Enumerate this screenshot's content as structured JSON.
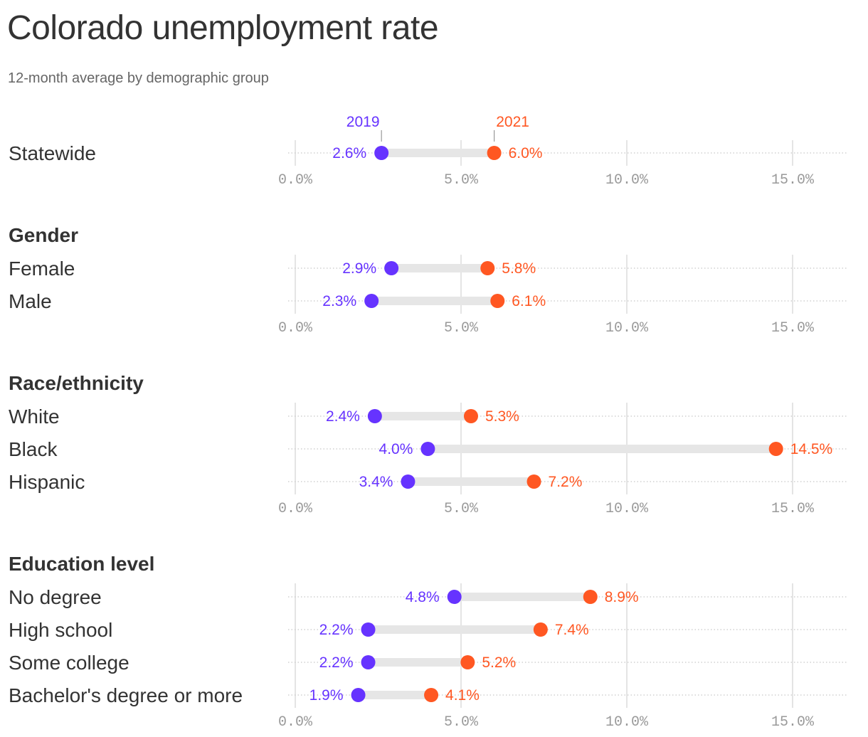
{
  "title": "Colorado unemployment rate",
  "subtitle": "12-month average by demographic group",
  "colors": {
    "y2019": "#6633ff",
    "y2021": "#ff5722",
    "bar": "#e6e6e6",
    "grid": "#dcdcdc"
  },
  "chart_data": {
    "type": "dot-range",
    "series": [
      {
        "name": "2019",
        "color": "#6633ff"
      },
      {
        "name": "2021",
        "color": "#ff5722"
      }
    ],
    "xlim": [
      0,
      16.5
    ],
    "ticks": [
      0,
      5,
      10,
      15
    ],
    "tick_labels": [
      "0.0%",
      "5.0%",
      "10.0%",
      "15.0%"
    ],
    "panels": [
      {
        "heading": "",
        "rows": [
          {
            "label": "Statewide",
            "v2019": 2.6,
            "v2021": 6.0,
            "l2019": "2.6%",
            "l2021": "6.0%"
          }
        ]
      },
      {
        "heading": "Gender",
        "rows": [
          {
            "label": "Female",
            "v2019": 2.9,
            "v2021": 5.8,
            "l2019": "2.9%",
            "l2021": "5.8%"
          },
          {
            "label": "Male",
            "v2019": 2.3,
            "v2021": 6.1,
            "l2019": "2.3%",
            "l2021": "6.1%"
          }
        ]
      },
      {
        "heading": "Race/ethnicity",
        "rows": [
          {
            "label": "White",
            "v2019": 2.4,
            "v2021": 5.3,
            "l2019": "2.4%",
            "l2021": "5.3%"
          },
          {
            "label": "Black",
            "v2019": 4.0,
            "v2021": 14.5,
            "l2019": "4.0%",
            "l2021": "14.5%"
          },
          {
            "label": "Hispanic",
            "v2019": 3.4,
            "v2021": 7.2,
            "l2019": "3.4%",
            "l2021": "7.2%"
          }
        ]
      },
      {
        "heading": "Education level",
        "rows": [
          {
            "label": "No degree",
            "v2019": 4.8,
            "v2021": 8.9,
            "l2019": "4.8%",
            "l2021": "8.9%"
          },
          {
            "label": "High school",
            "v2019": 2.2,
            "v2021": 7.4,
            "l2019": "2.2%",
            "l2021": "7.4%"
          },
          {
            "label": "Some college",
            "v2019": 2.2,
            "v2021": 5.2,
            "l2019": "2.2%",
            "l2021": "5.2%"
          },
          {
            "label": "Bachelor's degree or more",
            "v2019": 1.9,
            "v2021": 4.1,
            "l2019": "1.9%",
            "l2021": "4.1%"
          }
        ]
      }
    ]
  }
}
